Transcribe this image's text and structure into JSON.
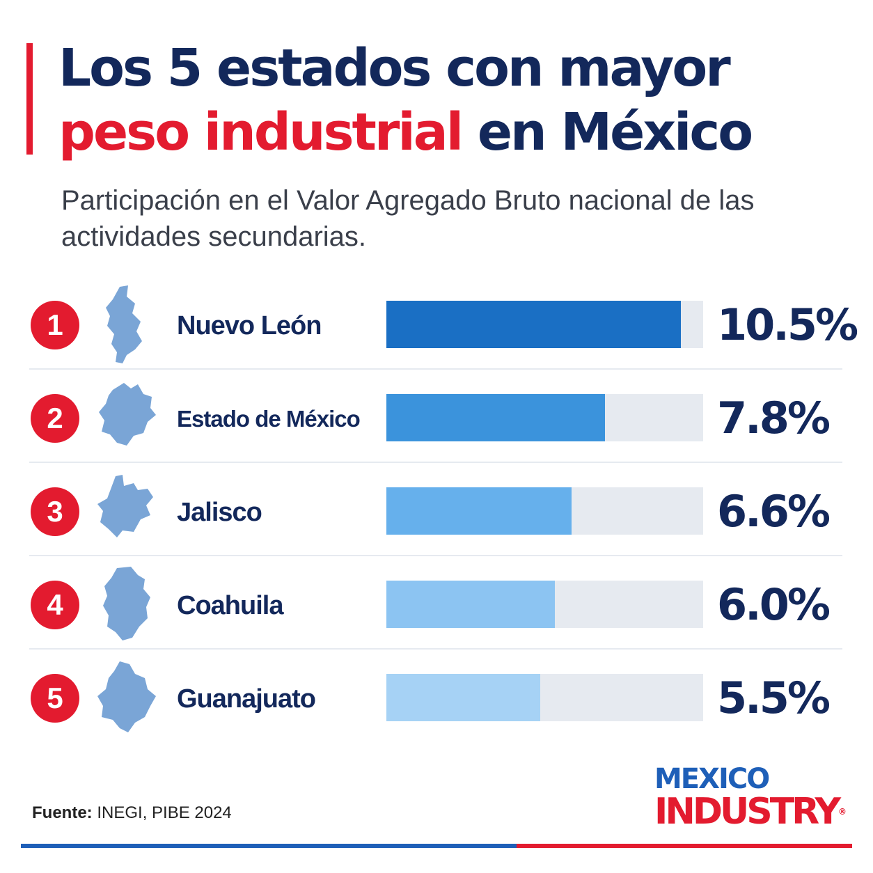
{
  "header": {
    "title_part1": "Los 5 estados con mayor",
    "title_highlight": "peso industrial",
    "title_part2": "en México",
    "subtitle": "Participación en el Valor Agregado Bruto nacional de las actividades secundarias."
  },
  "colors": {
    "accent_red": "#e31b2f",
    "navy": "#13285b",
    "track": "#e6eaf0",
    "bar_colors": [
      "#1a6fc4",
      "#3b93dc",
      "#66b0ec",
      "#8cc4f2",
      "#a6d2f5"
    ],
    "state_icon": "#7aa5d6"
  },
  "chart_data": {
    "type": "bar",
    "orientation": "horizontal",
    "categories": [
      "Nuevo León",
      "Estado de México",
      "Jalisco",
      "Coahuila",
      "Guanajuato"
    ],
    "ranks": [
      "1",
      "2",
      "3",
      "4",
      "5"
    ],
    "values": [
      10.5,
      7.8,
      6.6,
      6.0,
      5.5
    ],
    "value_labels": [
      "10.5%",
      "7.8%",
      "6.6%",
      "6.0%",
      "5.5%"
    ],
    "xlim": [
      0,
      11.3
    ],
    "icons": [
      "nuevo-leon-map-icon",
      "estado-de-mexico-map-icon",
      "jalisco-map-icon",
      "coahuila-map-icon",
      "guanajuato-map-icon"
    ]
  },
  "footer": {
    "source_label": "Fuente:",
    "source_text": "INEGI, PIBE 2024",
    "logo_top": "MEXICO",
    "logo_bottom": "INDUSTRY",
    "logo_reg": "®"
  }
}
